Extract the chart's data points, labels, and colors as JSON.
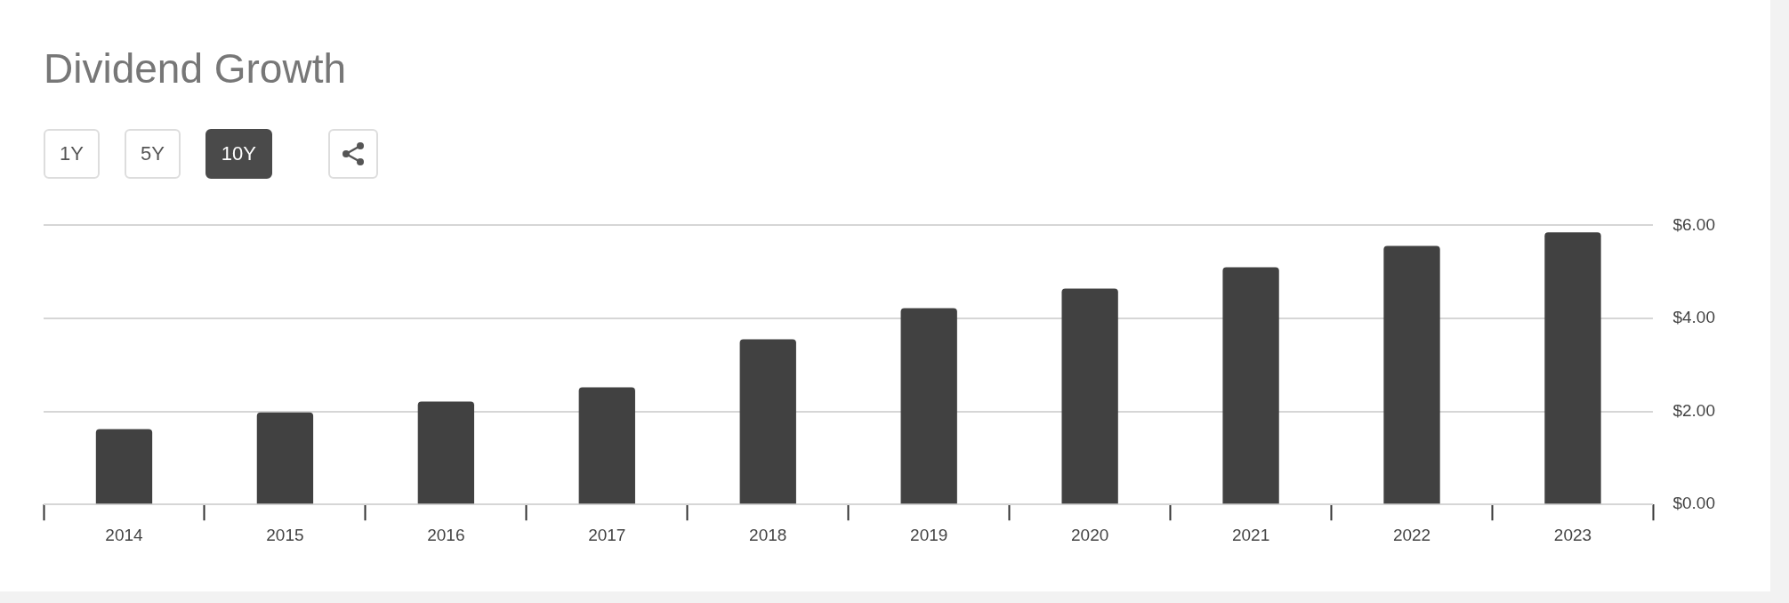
{
  "chart_data": {
    "type": "bar",
    "title": "Dividend Growth",
    "annotations": [
      "1Y",
      "5Y",
      "10Y"
    ],
    "categories": [
      "2014",
      "2015",
      "2016",
      "2017",
      "2018",
      "2019",
      "2020",
      "2021",
      "2022",
      "2023"
    ],
    "values": [
      1.62,
      1.98,
      2.21,
      2.52,
      3.55,
      4.22,
      4.64,
      5.1,
      5.56,
      5.85
    ],
    "color": "#414141",
    "ylim": [
      0,
      6
    ],
    "yticks": [
      {
        "value": 0,
        "label": "$0.00"
      },
      {
        "value": 2,
        "label": "$2.00"
      },
      {
        "value": 4,
        "label": "$4.00"
      },
      {
        "value": 6,
        "label": "$6.00"
      }
    ],
    "grid": "y",
    "legend": false
  }
}
